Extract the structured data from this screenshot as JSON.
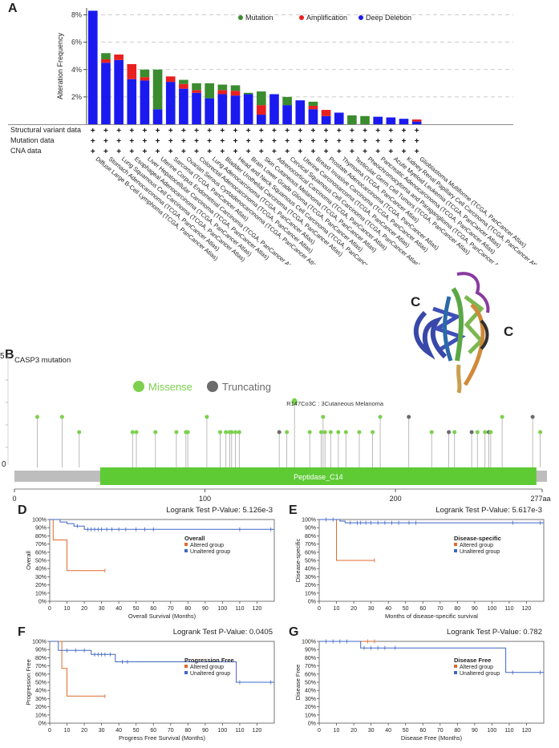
{
  "panels": {
    "A": "A",
    "B": "B",
    "D": "D",
    "E": "E",
    "F": "F",
    "G": "G"
  },
  "structure_labels": [
    "C",
    "C"
  ],
  "chart_data": [
    {
      "type": "bar",
      "id": "A",
      "title": "",
      "ylabel": "Alteration Frequency",
      "ylim": [
        0,
        8.5
      ],
      "yticks": [
        2,
        4,
        6,
        8
      ],
      "ytick_labels": [
        "2%",
        "4%",
        "6%",
        "8%"
      ],
      "legend": [
        {
          "name": "Mutation",
          "color": "#3a8c2f"
        },
        {
          "name": "Amplification",
          "color": "#e8201f"
        },
        {
          "name": "Deep Deletion",
          "color": "#1a1af0"
        }
      ],
      "row_labels": [
        "Structural variant data",
        "Mutation data",
        "CNA data"
      ],
      "row_marker": "+",
      "categories": [
        "Diffuse Large B-Cell Lymphoma (TCGA, PanCancer Atlas)",
        "Stomach Adenocarcinoma (TCGA, PanCancer Atlas)",
        "Lung Squamous Cell Carcinoma (TCGA, PanCancer Atlas)",
        "Esophageal Adenocarcinoma (TCGA, PanCancer Atlas)",
        "Liver Hepatocellular Carcinoma (TCGA, PanCancer Atlas)",
        "Uterine Corpus Endometrial Carcinoma (TCGA, PanCancer Atlas)",
        "Sarcoma (TCGA, PanCancer Atlas)",
        "Ovarian Serous Cystadenocarcinoma (TCGA, PanCancer Atlas)",
        "Colorectal Adenocarcinoma (TCGA, PanCancer Atlas)",
        "Lung Adenocarcinoma (TCGA, PanCancer Atlas)",
        "Bladder Urothelial Carcinoma (TCGA, PanCancer Atlas)",
        "Head and Neck Squamous Cell Carcinoma (TCGA, PanCancer Atlas)",
        "Brain Lower Grade Glioma (TCGA, PanCancer Atlas)",
        "Skin Cutaneous Melanoma (TCGA, PanCancer Atlas)",
        "Adrenocortical Carcinoma (TCGA, PanCancer Atlas)",
        "Cervical Squamous Cell Carcinoma (TCGA, PanCancer Atlas)",
        "Uterine Carcinosarcoma (TCGA, PanCancer Atlas)",
        "Breast Invasive Carcinoma (TCGA, PanCancer Atlas)",
        "Prostate Adenocarcinoma (TCGA, PanCancer Atlas)",
        "Thymoma (TCGA, PanCancer Atlas)",
        "Testicular Germ Cell Tumors (TCGA, PanCancer Atlas)",
        "Pheochromocytoma and Paraganglioma (TCGA, PanCancer Atlas)",
        "Pancreatic Adenocarcinoma (TCGA, PanCancer Atlas)",
        "Acute Myeloid Leukemia (TCGA, PanCancer Atlas)",
        "Kidney Renal Papillary Cell Carcinoma (TCGA, PanCancer Atlas)",
        "Glioblastoma Multiforme (TCGA, PanCancer Atlas)"
      ],
      "series": [
        {
          "name": "Deep Deletion",
          "values": [
            8.3,
            4.5,
            4.7,
            3.3,
            3.2,
            1.1,
            3.1,
            2.6,
            2.3,
            1.9,
            2.2,
            2.1,
            2.2,
            0.7,
            2.2,
            1.4,
            1.75,
            1.1,
            0.6,
            0.85,
            0,
            0,
            0.55,
            0.5,
            0.4,
            0.2
          ]
        },
        {
          "name": "Amplification",
          "values": [
            0,
            0.25,
            0.4,
            1.1,
            0.25,
            0,
            0.4,
            0.35,
            0.2,
            0,
            0.3,
            0.35,
            0,
            0.7,
            0,
            0,
            0,
            0.25,
            0.45,
            0,
            0,
            0,
            0,
            0,
            0,
            0.15
          ]
        },
        {
          "name": "Mutation",
          "values": [
            0,
            0.45,
            0,
            0,
            0.55,
            2.9,
            0,
            0.3,
            0.5,
            1.1,
            0.4,
            0.4,
            0.1,
            1.0,
            0,
            0.6,
            0,
            0.3,
            0,
            0,
            0.65,
            0.6,
            0,
            0,
            0,
            0
          ]
        }
      ]
    },
    {
      "type": "lollipop",
      "id": "B",
      "title": "CASP3 mutation",
      "ymax_label": "5",
      "y0_label": "0",
      "legend": [
        {
          "name": "Missense",
          "color": "#7cd04d"
        },
        {
          "name": "Truncating",
          "color": "#6b6b6b"
        }
      ],
      "domain": {
        "name": "Peptidase_C14",
        "start": 45,
        "end": 274
      },
      "protein_length": 277,
      "xticks": [
        0,
        100,
        200
      ],
      "xtick_labels": [
        "0",
        "100",
        "200"
      ],
      "end_label": "277aa",
      "annotation": "R147Co3C : 3Cutaneous Melanoma",
      "mutations": [
        {
          "pos": 12,
          "count": 2,
          "type": "Missense"
        },
        {
          "pos": 25,
          "count": 2,
          "type": "Missense"
        },
        {
          "pos": 34,
          "count": 1,
          "type": "Missense"
        },
        {
          "pos": 62,
          "count": 1,
          "type": "Missense"
        },
        {
          "pos": 64,
          "count": 1,
          "type": "Missense"
        },
        {
          "pos": 74,
          "count": 1,
          "type": "Missense"
        },
        {
          "pos": 85,
          "count": 1,
          "type": "Missense"
        },
        {
          "pos": 90,
          "count": 1,
          "type": "Missense"
        },
        {
          "pos": 91,
          "count": 1,
          "type": "Missense"
        },
        {
          "pos": 101,
          "count": 2,
          "type": "Missense"
        },
        {
          "pos": 108,
          "count": 1,
          "type": "Missense"
        },
        {
          "pos": 111,
          "count": 1,
          "type": "Missense"
        },
        {
          "pos": 113,
          "count": 1,
          "type": "Missense"
        },
        {
          "pos": 114,
          "count": 1,
          "type": "Missense"
        },
        {
          "pos": 116,
          "count": 1,
          "type": "Missense"
        },
        {
          "pos": 118,
          "count": 1,
          "type": "Missense"
        },
        {
          "pos": 139,
          "count": 1,
          "type": "Truncating"
        },
        {
          "pos": 143,
          "count": 1,
          "type": "Missense"
        },
        {
          "pos": 147,
          "count": 3,
          "type": "Missense"
        },
        {
          "pos": 155,
          "count": 1,
          "type": "Missense"
        },
        {
          "pos": 161,
          "count": 1,
          "type": "Missense"
        },
        {
          "pos": 162,
          "count": 2,
          "type": "Missense"
        },
        {
          "pos": 163,
          "count": 1,
          "type": "Missense"
        },
        {
          "pos": 166,
          "count": 1,
          "type": "Missense"
        },
        {
          "pos": 170,
          "count": 1,
          "type": "Missense"
        },
        {
          "pos": 174,
          "count": 1,
          "type": "Missense"
        },
        {
          "pos": 181,
          "count": 1,
          "type": "Missense"
        },
        {
          "pos": 188,
          "count": 1,
          "type": "Missense"
        },
        {
          "pos": 192,
          "count": 2,
          "type": "Missense"
        },
        {
          "pos": 207,
          "count": 2,
          "type": "Truncating"
        },
        {
          "pos": 219,
          "count": 1,
          "type": "Missense"
        },
        {
          "pos": 228,
          "count": 1,
          "type": "Truncating"
        },
        {
          "pos": 231,
          "count": 1,
          "type": "Missense"
        },
        {
          "pos": 240,
          "count": 1,
          "type": "Truncating"
        },
        {
          "pos": 243,
          "count": 1,
          "type": "Missense"
        },
        {
          "pos": 247,
          "count": 1,
          "type": "Missense"
        },
        {
          "pos": 249,
          "count": 1,
          "type": "Truncating"
        },
        {
          "pos": 250,
          "count": 1,
          "type": "Missense"
        },
        {
          "pos": 256,
          "count": 2,
          "type": "Missense"
        },
        {
          "pos": 272,
          "count": 2,
          "type": "Truncating"
        },
        {
          "pos": 276,
          "count": 1,
          "type": "Missense"
        }
      ]
    },
    {
      "type": "line",
      "id": "D",
      "pvalue_text": "Logrank Test P-Value: 5.126e-3",
      "legend_title": "Overall",
      "ylabel": "Overall",
      "xlabel": "Overall Survival (Months)",
      "xlim": [
        0,
        130
      ],
      "ylim": [
        0,
        100
      ],
      "xticks": [
        0,
        10,
        20,
        30,
        40,
        50,
        60,
        70,
        80,
        90,
        100,
        110,
        120
      ],
      "yticks": [
        0,
        10,
        20,
        30,
        40,
        50,
        60,
        70,
        80,
        90,
        100
      ],
      "series": [
        {
          "name": "Altered group",
          "color": "#e06a2b",
          "x": [
            0,
            2,
            2,
            10,
            10,
            32
          ],
          "y": [
            100,
            100,
            75,
            75,
            37.5,
            37.5
          ],
          "censor": [
            [
              32,
              37.5
            ]
          ]
        },
        {
          "name": "Unaltered group",
          "color": "#3f66c4",
          "x": [
            0,
            6,
            6,
            10,
            10,
            14,
            14,
            20,
            20,
            130
          ],
          "y": [
            100,
            100,
            97,
            97,
            95,
            95,
            92,
            92,
            88,
            88
          ],
          "censor": [
            [
              16,
              92
            ],
            [
              22,
              88
            ],
            [
              24,
              88
            ],
            [
              26,
              88
            ],
            [
              28,
              88
            ],
            [
              30,
              88
            ],
            [
              33,
              88
            ],
            [
              36,
              88
            ],
            [
              40,
              88
            ],
            [
              44,
              88
            ],
            [
              50,
              88
            ],
            [
              55,
              88
            ],
            [
              60,
              88
            ],
            [
              110,
              88
            ],
            [
              128,
              88
            ]
          ]
        }
      ]
    },
    {
      "type": "line",
      "id": "E",
      "pvalue_text": "Logrank Test P-Value: 5.617e-3",
      "legend_title": "Disease-specific",
      "ylabel": "Disease-specific",
      "xlabel": "Months of disease-specific survival",
      "xlim": [
        0,
        130
      ],
      "ylim": [
        0,
        100
      ],
      "xticks": [
        0,
        10,
        20,
        30,
        40,
        50,
        60,
        70,
        80,
        90,
        100,
        110,
        120
      ],
      "yticks": [
        0,
        10,
        20,
        30,
        40,
        50,
        60,
        70,
        80,
        90,
        100
      ],
      "series": [
        {
          "name": "Altered group",
          "color": "#e06a2b",
          "x": [
            0,
            10,
            10,
            32
          ],
          "y": [
            100,
            100,
            50,
            50
          ],
          "censor": [
            [
              32,
              50
            ]
          ]
        },
        {
          "name": "Unaltered group",
          "color": "#3f66c4",
          "x": [
            0,
            12,
            12,
            15,
            15,
            130
          ],
          "y": [
            100,
            100,
            98,
            98,
            96,
            96
          ],
          "censor": [
            [
              4,
              100
            ],
            [
              8,
              100
            ],
            [
              18,
              96
            ],
            [
              22,
              96
            ],
            [
              24,
              96
            ],
            [
              27,
              96
            ],
            [
              30,
              96
            ],
            [
              34,
              96
            ],
            [
              38,
              96
            ],
            [
              42,
              96
            ],
            [
              46,
              96
            ],
            [
              52,
              96
            ],
            [
              56,
              96
            ],
            [
              112,
              96
            ],
            [
              128,
              96
            ]
          ]
        }
      ]
    },
    {
      "type": "line",
      "id": "F",
      "pvalue_text": "Logrank Test P-Value: 0.0405",
      "legend_title": "Progression Free",
      "ylabel": "Progression Free",
      "xlabel": "Progress Free Survival (Months)",
      "xlim": [
        0,
        130
      ],
      "ylim": [
        0,
        100
      ],
      "xticks": [
        0,
        10,
        20,
        30,
        40,
        50,
        60,
        70,
        80,
        90,
        100,
        110,
        120
      ],
      "yticks": [
        0,
        10,
        20,
        30,
        40,
        50,
        60,
        70,
        80,
        90,
        100
      ],
      "series": [
        {
          "name": "Altered group",
          "color": "#e06a2b",
          "x": [
            0,
            7,
            7,
            10,
            10,
            32
          ],
          "y": [
            100,
            100,
            67,
            67,
            33,
            33
          ],
          "censor": [
            [
              32,
              33
            ]
          ]
        },
        {
          "name": "Unaltered group",
          "color": "#3f66c4",
          "x": [
            0,
            5,
            5,
            24,
            24,
            38,
            38,
            108,
            108,
            130
          ],
          "y": [
            100,
            100,
            89,
            89,
            84,
            84,
            75,
            75,
            50,
            50
          ],
          "censor": [
            [
              10,
              89
            ],
            [
              15,
              89
            ],
            [
              20,
              89
            ],
            [
              26,
              84
            ],
            [
              28,
              84
            ],
            [
              30,
              84
            ],
            [
              32,
              84
            ],
            [
              35,
              84
            ],
            [
              42,
              75
            ],
            [
              45,
              75
            ],
            [
              110,
              50
            ],
            [
              128,
              50
            ]
          ]
        }
      ]
    },
    {
      "type": "line",
      "id": "G",
      "pvalue_text": "Logrank Test P-Value: 0.782",
      "legend_title": "Disease Free",
      "ylabel": "Disease Free",
      "xlabel": "Disease Free (Months)",
      "xlim": [
        0,
        130
      ],
      "ylim": [
        0,
        100
      ],
      "xticks": [
        0,
        10,
        20,
        30,
        40,
        50,
        60,
        70,
        80,
        90,
        100,
        110,
        120
      ],
      "yticks": [
        0,
        10,
        20,
        30,
        40,
        50,
        60,
        70,
        80,
        90,
        100
      ],
      "series": [
        {
          "name": "Altered group",
          "color": "#e06a2b",
          "x": [
            0,
            32
          ],
          "y": [
            100,
            100
          ],
          "censor": [
            [
              28,
              100
            ],
            [
              32,
              100
            ]
          ]
        },
        {
          "name": "Unaltered group",
          "color": "#3f66c4",
          "x": [
            0,
            24,
            24,
            108,
            108,
            130
          ],
          "y": [
            100,
            100,
            92,
            92,
            62,
            62
          ],
          "censor": [
            [
              4,
              100
            ],
            [
              8,
              100
            ],
            [
              12,
              100
            ],
            [
              16,
              100
            ],
            [
              26,
              92
            ],
            [
              30,
              92
            ],
            [
              34,
              92
            ],
            [
              38,
              92
            ],
            [
              44,
              92
            ],
            [
              112,
              62
            ],
            [
              128,
              62
            ]
          ]
        }
      ]
    }
  ]
}
